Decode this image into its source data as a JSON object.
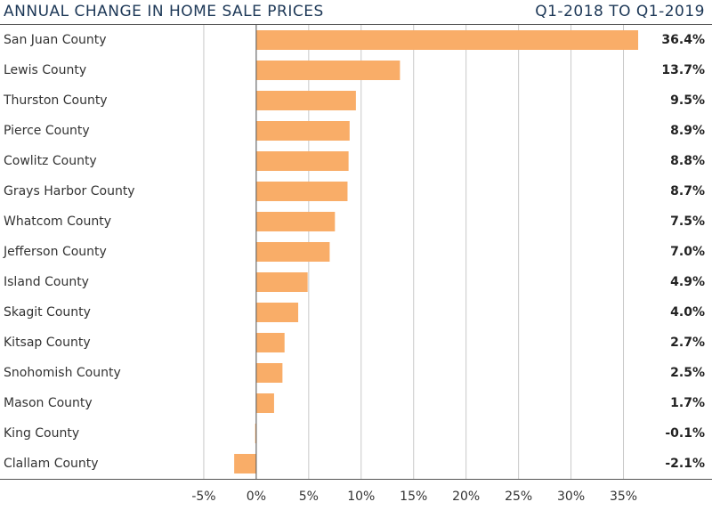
{
  "chart_data": {
    "type": "bar",
    "orientation": "horizontal",
    "title": "ANNUAL CHANGE IN HOME SALE PRICES",
    "subtitle": "Q1-2018 TO Q1-2019",
    "categories": [
      "San Juan County",
      "Lewis County",
      "Thurston County",
      "Pierce County",
      "Cowlitz County",
      "Grays Harbor County",
      "Whatcom County",
      "Jefferson County",
      "Island County",
      "Skagit County",
      "Kitsap County",
      "Snohomish County",
      "Mason County",
      "King County",
      "Clallam County"
    ],
    "values": [
      36.4,
      13.7,
      9.5,
      8.9,
      8.8,
      8.7,
      7.5,
      7.0,
      4.9,
      4.0,
      2.7,
      2.5,
      1.7,
      -0.1,
      -2.1
    ],
    "value_labels": [
      "36.4%",
      "13.7%",
      "9.5%",
      "8.9%",
      "8.8%",
      "8.7%",
      "7.5%",
      "7.0%",
      "4.9%",
      "4.0%",
      "2.7%",
      "2.5%",
      "1.7%",
      "-0.1%",
      "-2.1%"
    ],
    "color": "#f9ad68",
    "xlim": [
      -10,
      37.5
    ],
    "xticks": [
      {
        "value": -5,
        "label": "-5%"
      },
      {
        "value": 0,
        "label": "0%"
      },
      {
        "value": 5,
        "label": "5%"
      },
      {
        "value": 10,
        "label": "10%"
      },
      {
        "value": 15,
        "label": "15%"
      },
      {
        "value": 20,
        "label": "20%"
      },
      {
        "value": 25,
        "label": "25%"
      },
      {
        "value": 30,
        "label": "30%"
      },
      {
        "value": 35,
        "label": "35%"
      }
    ],
    "grid": true
  }
}
